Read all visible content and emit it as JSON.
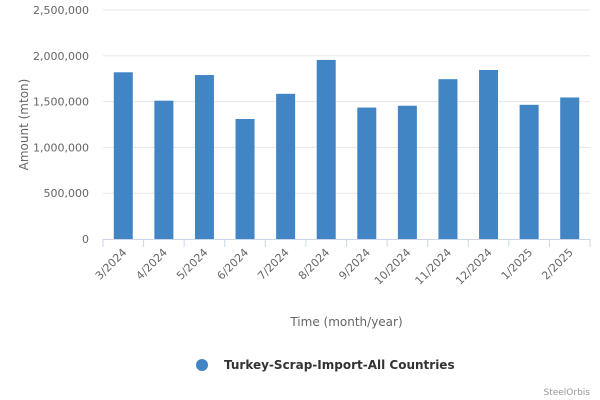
{
  "chart_data": {
    "type": "bar",
    "categories": [
      "3/2024",
      "4/2024",
      "5/2024",
      "6/2024",
      "7/2024",
      "8/2024",
      "9/2024",
      "10/2024",
      "11/2024",
      "12/2024",
      "1/2025",
      "2/2025"
    ],
    "series": [
      {
        "name": "Turkey-Scrap-Import-All Countries",
        "values": [
          1820000,
          1510000,
          1790000,
          1310000,
          1585000,
          1955000,
          1435000,
          1455000,
          1745000,
          1845000,
          1465000,
          1545000
        ],
        "color": "#4285c5"
      }
    ],
    "xlabel": "Time (month/year)",
    "ylabel": "Amount (mton)",
    "ylim": [
      0,
      2500000
    ],
    "yticks": [
      "0",
      "500,000",
      "1,000,000",
      "1,500,000",
      "2,000,000",
      "2,500,000"
    ],
    "grid": true,
    "legend": "bottom-center",
    "credit": "SteelOrbis"
  }
}
